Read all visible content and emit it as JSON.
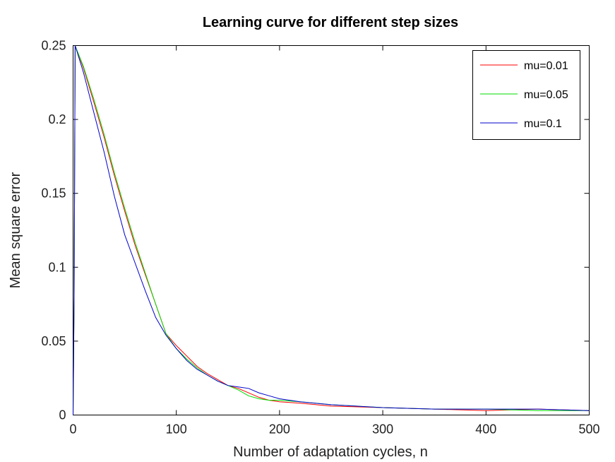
{
  "chart_data": {
    "type": "line",
    "title": "Learning curve for different step sizes",
    "xlabel": "Number of adaptation cycles, n",
    "ylabel": "Mean square error",
    "xlim": [
      0,
      500
    ],
    "ylim": [
      0,
      0.25
    ],
    "xticks": [
      0,
      100,
      200,
      300,
      400,
      500
    ],
    "xtick_labels": [
      "0",
      "100",
      "200",
      "300",
      "400",
      "500"
    ],
    "yticks": [
      0,
      0.05,
      0.1,
      0.15,
      0.2,
      0.25
    ],
    "ytick_labels": [
      "0",
      "0.05",
      "0.1",
      "0.15",
      "0.2",
      "0.25"
    ],
    "grid": false,
    "legend_position": "top-right",
    "series": [
      {
        "name": "mu=0.01",
        "color": "#ff0000",
        "points": [
          [
            0,
            0
          ],
          [
            1,
            0.08
          ],
          [
            2,
            0.25
          ],
          [
            10,
            0.235
          ],
          [
            20,
            0.212
          ],
          [
            30,
            0.188
          ],
          [
            40,
            0.162
          ],
          [
            50,
            0.138
          ],
          [
            60,
            0.115
          ],
          [
            70,
            0.095
          ],
          [
            80,
            0.075
          ],
          [
            90,
            0.055
          ],
          [
            100,
            0.047
          ],
          [
            110,
            0.04
          ],
          [
            120,
            0.033
          ],
          [
            130,
            0.028
          ],
          [
            140,
            0.024
          ],
          [
            150,
            0.02
          ],
          [
            160,
            0.018
          ],
          [
            170,
            0.015
          ],
          [
            180,
            0.012
          ],
          [
            190,
            0.01
          ],
          [
            200,
            0.009
          ],
          [
            220,
            0.008
          ],
          [
            250,
            0.006
          ],
          [
            300,
            0.005
          ],
          [
            350,
            0.004
          ],
          [
            400,
            0.003
          ],
          [
            450,
            0.004
          ],
          [
            500,
            0.003
          ]
        ]
      },
      {
        "name": "mu=0.05",
        "color": "#00dd00",
        "points": [
          [
            0,
            0
          ],
          [
            1,
            0.08
          ],
          [
            2,
            0.25
          ],
          [
            10,
            0.236
          ],
          [
            20,
            0.214
          ],
          [
            30,
            0.19
          ],
          [
            40,
            0.164
          ],
          [
            50,
            0.14
          ],
          [
            60,
            0.117
          ],
          [
            70,
            0.096
          ],
          [
            80,
            0.075
          ],
          [
            90,
            0.055
          ],
          [
            100,
            0.045
          ],
          [
            110,
            0.038
          ],
          [
            120,
            0.032
          ],
          [
            130,
            0.027
          ],
          [
            140,
            0.023
          ],
          [
            150,
            0.02
          ],
          [
            160,
            0.017
          ],
          [
            170,
            0.013
          ],
          [
            180,
            0.011
          ],
          [
            190,
            0.01
          ],
          [
            200,
            0.01
          ],
          [
            220,
            0.009
          ],
          [
            250,
            0.007
          ],
          [
            300,
            0.005
          ],
          [
            350,
            0.004
          ],
          [
            400,
            0.004
          ],
          [
            450,
            0.003
          ],
          [
            500,
            0.003
          ]
        ]
      },
      {
        "name": "mu=0.1",
        "color": "#0000cc",
        "points": [
          [
            0,
            0
          ],
          [
            1,
            0.08
          ],
          [
            2,
            0.25
          ],
          [
            10,
            0.232
          ],
          [
            20,
            0.205
          ],
          [
            30,
            0.178
          ],
          [
            40,
            0.148
          ],
          [
            50,
            0.122
          ],
          [
            60,
            0.103
          ],
          [
            70,
            0.084
          ],
          [
            80,
            0.066
          ],
          [
            90,
            0.054
          ],
          [
            100,
            0.045
          ],
          [
            110,
            0.037
          ],
          [
            120,
            0.031
          ],
          [
            130,
            0.027
          ],
          [
            140,
            0.023
          ],
          [
            150,
            0.02
          ],
          [
            160,
            0.019
          ],
          [
            170,
            0.018
          ],
          [
            180,
            0.015
          ],
          [
            190,
            0.013
          ],
          [
            200,
            0.011
          ],
          [
            220,
            0.009
          ],
          [
            250,
            0.007
          ],
          [
            300,
            0.005
          ],
          [
            350,
            0.004
          ],
          [
            400,
            0.004
          ],
          [
            450,
            0.004
          ],
          [
            500,
            0.003
          ]
        ]
      }
    ]
  }
}
